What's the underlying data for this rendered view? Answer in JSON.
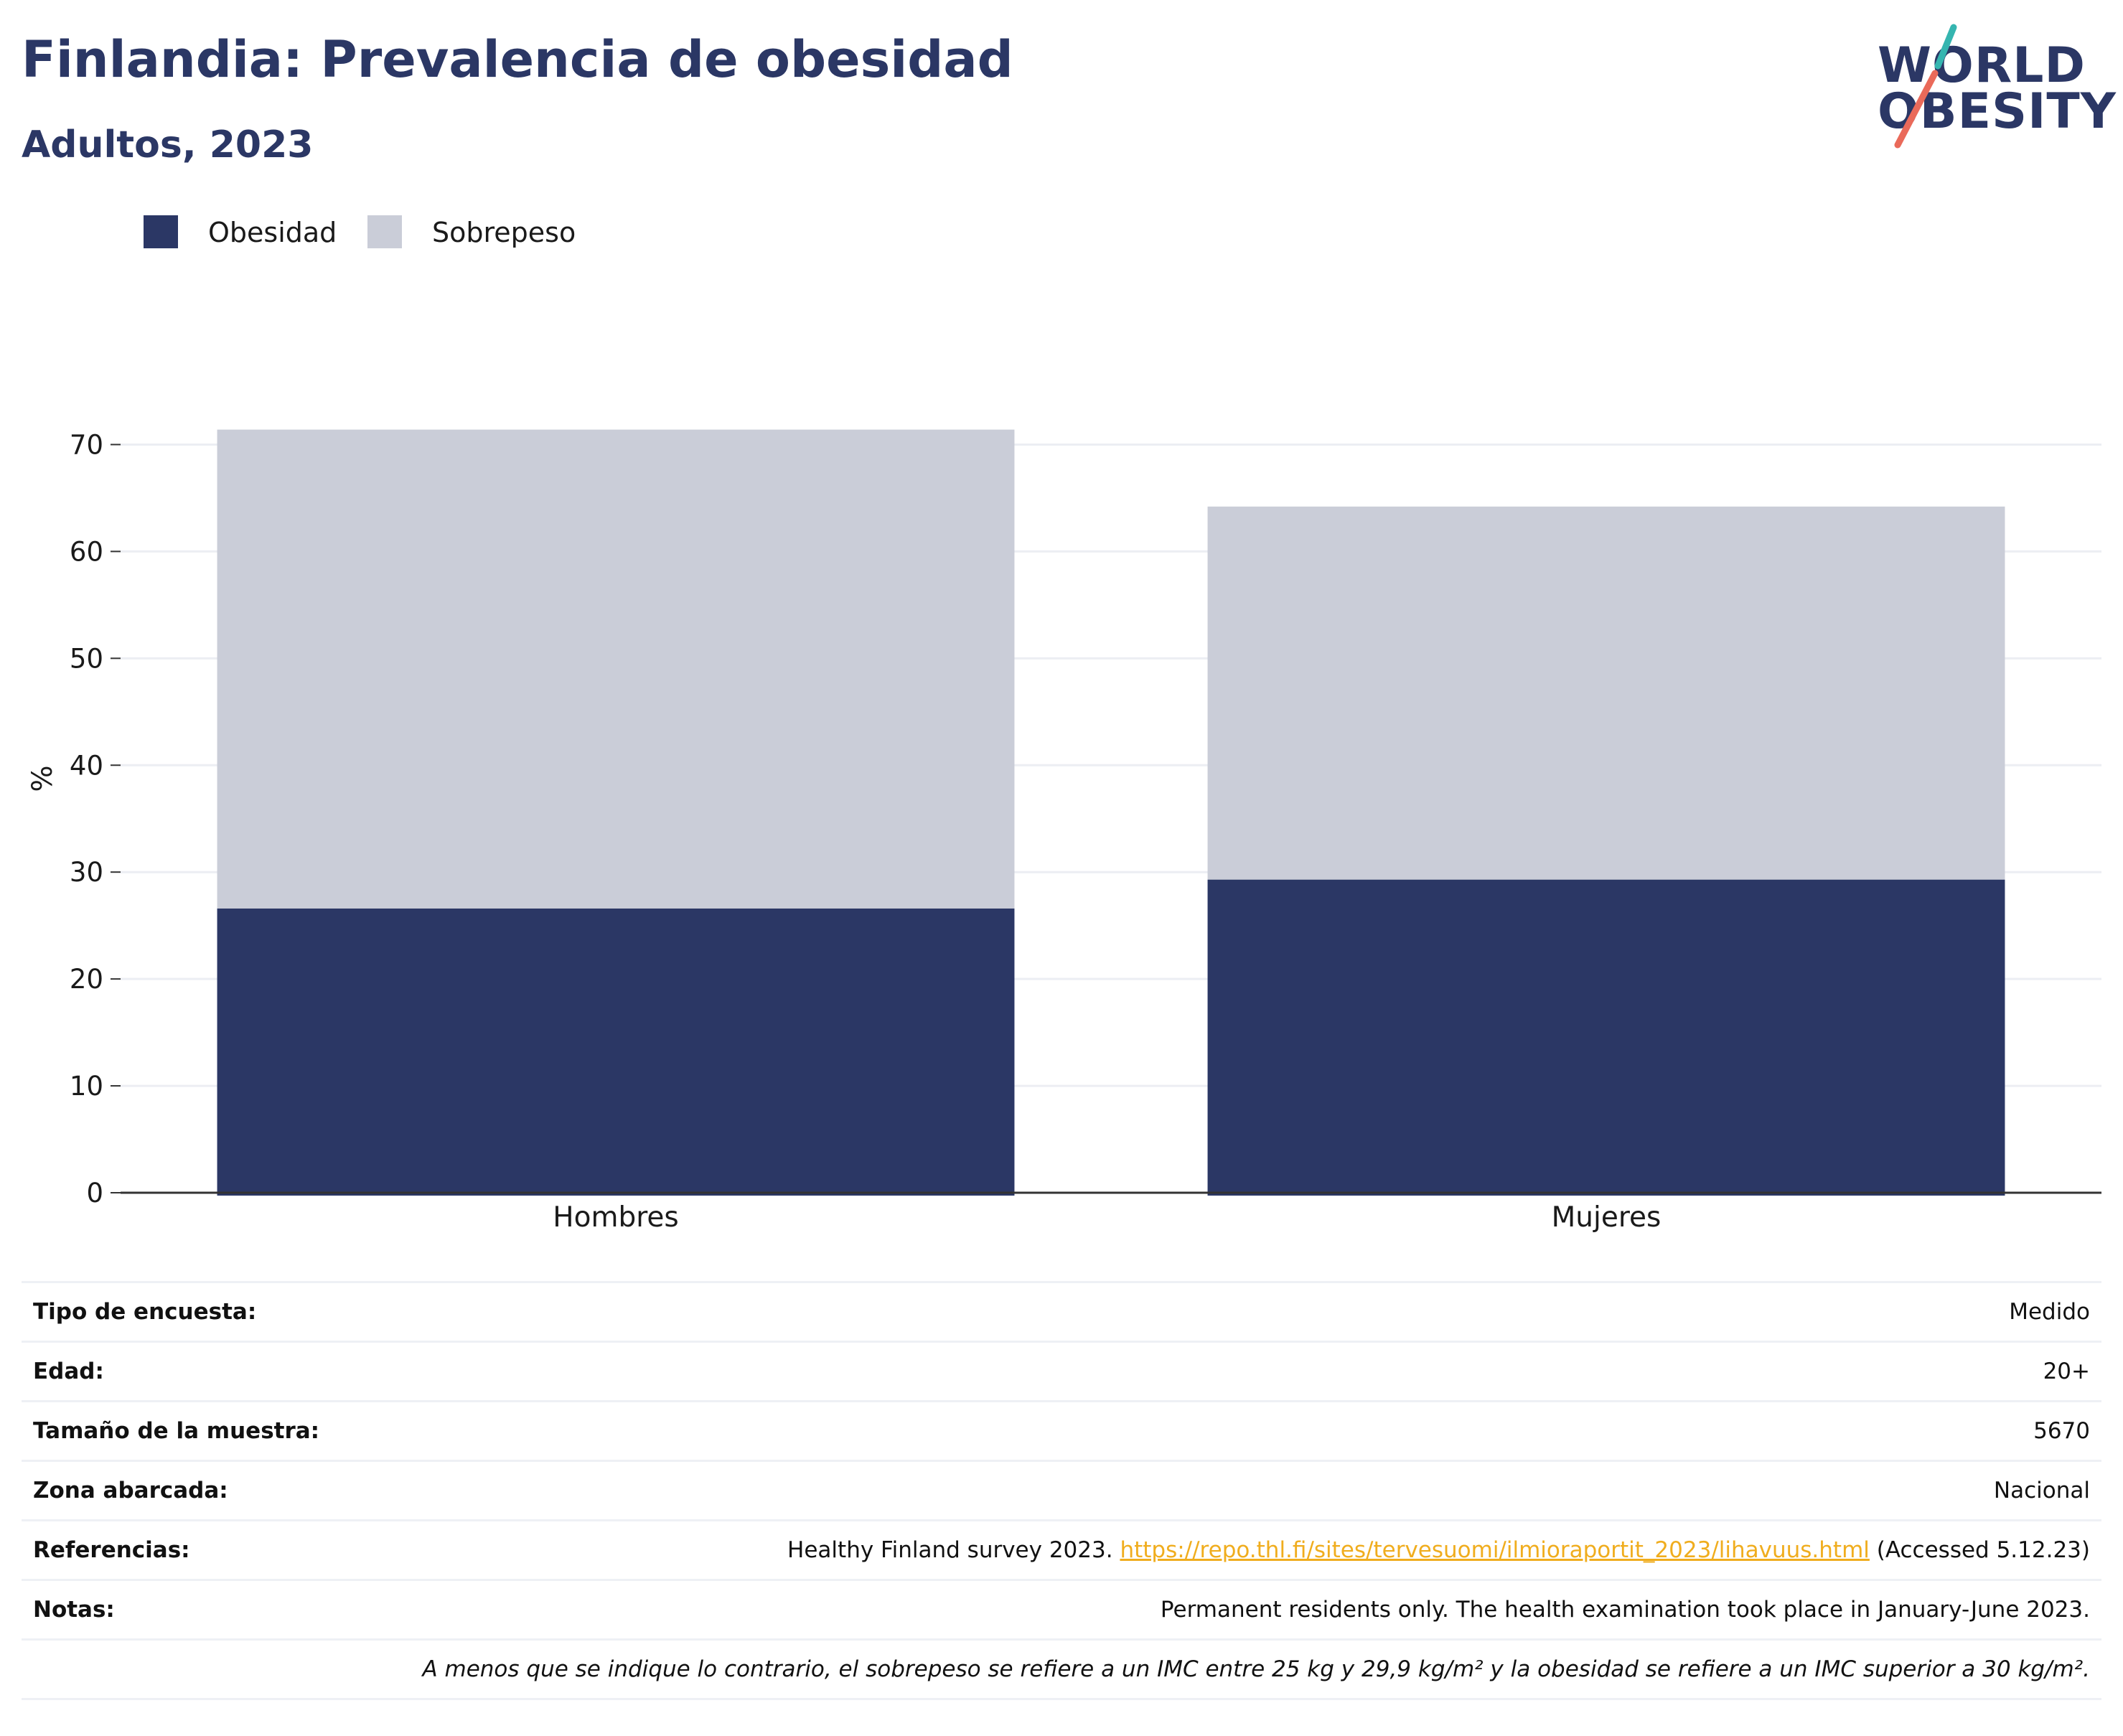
{
  "header": {
    "title": "Finlandia: Prevalencia de obesidad",
    "subtitle": "Adultos, 2023"
  },
  "logo": {
    "line1": "WORLD",
    "line2": "OBESITY"
  },
  "colors": {
    "obesity": "#2b3765",
    "overweight": "#cacdd8",
    "accent": "#f0ad1e"
  },
  "chart_data": {
    "type": "bar",
    "stacked": true,
    "categories": [
      "Hombres",
      "Mujeres"
    ],
    "series": [
      {
        "name": "Obesidad",
        "values": [
          26.6,
          29.3
        ],
        "color": "#2b3765"
      },
      {
        "name": "Sobrepeso",
        "values": [
          44.8,
          34.9
        ],
        "color": "#cacdd8"
      }
    ],
    "ylabel": "%",
    "ylim": [
      0,
      75
    ],
    "yticks": [
      0,
      10,
      20,
      30,
      40,
      50,
      60,
      70
    ],
    "grid": true,
    "legend_position": "top-left"
  },
  "info": {
    "rows": [
      {
        "key": "Tipo de encuesta:",
        "value": "Medido"
      },
      {
        "key": "Edad:",
        "value": "20+"
      },
      {
        "key": "Tamaño de la muestra:",
        "value": "5670"
      },
      {
        "key": "Zona abarcada:",
        "value": "Nacional"
      }
    ],
    "references": {
      "key": "Referencias:",
      "before": "Healthy Finland survey 2023. ",
      "link": "https://repo.thl.fi/sites/tervesuomi/ilmioraportit_2023/lihavuus.html",
      "after": " (Accessed 5.12.23)"
    },
    "notes": {
      "key": "Notas:",
      "value": "Permanent residents only. The health examination took place in January-June 2023."
    },
    "footnote": "A menos que se indique lo contrario, el sobrepeso se refiere a un IMC entre 25 kg y 29,9 kg/m² y la obesidad se refiere a un IMC superior a 30 kg/m²."
  }
}
